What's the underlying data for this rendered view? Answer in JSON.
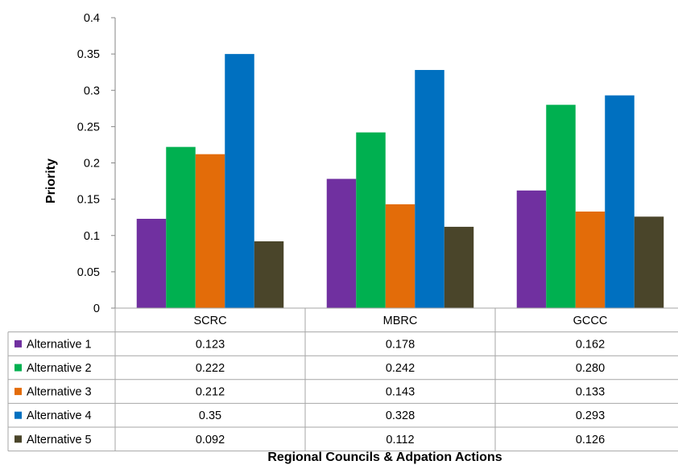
{
  "chart_data": {
    "type": "bar",
    "xlabel": "Regional Councils & Adpation Actions",
    "ylabel": "Priority",
    "ylim": [
      0,
      0.4
    ],
    "yticks": [
      "0",
      "0.05",
      "0.1",
      "0.15",
      "0.2",
      "0.25",
      "0.3",
      "0.35",
      "0.4"
    ],
    "categories": [
      "SCRC",
      "MBRC",
      "GCCC"
    ],
    "grid": false,
    "legend": "data-table",
    "series": [
      {
        "name": "Alternative 1",
        "color": "#7030A0",
        "values": [
          0.123,
          0.178,
          0.162
        ],
        "labels": [
          "0.123",
          "0.178",
          "0.162"
        ]
      },
      {
        "name": "Alternative 2",
        "color": "#00B050",
        "values": [
          0.222,
          0.242,
          0.28
        ],
        "labels": [
          "0.222",
          "0.242",
          "0.280"
        ]
      },
      {
        "name": "Alternative 3",
        "color": "#E36C09",
        "values": [
          0.212,
          0.143,
          0.133
        ],
        "labels": [
          "0.212",
          "0.143",
          "0.133"
        ]
      },
      {
        "name": "Alternative 4",
        "color": "#0070C0",
        "values": [
          0.35,
          0.328,
          0.293
        ],
        "labels": [
          "0.35",
          "0.328",
          "0.293"
        ]
      },
      {
        "name": "Alternative 5",
        "color": "#4A452A",
        "values": [
          0.092,
          0.112,
          0.126
        ],
        "labels": [
          "0.092",
          "0.112",
          "0.126"
        ]
      }
    ]
  }
}
